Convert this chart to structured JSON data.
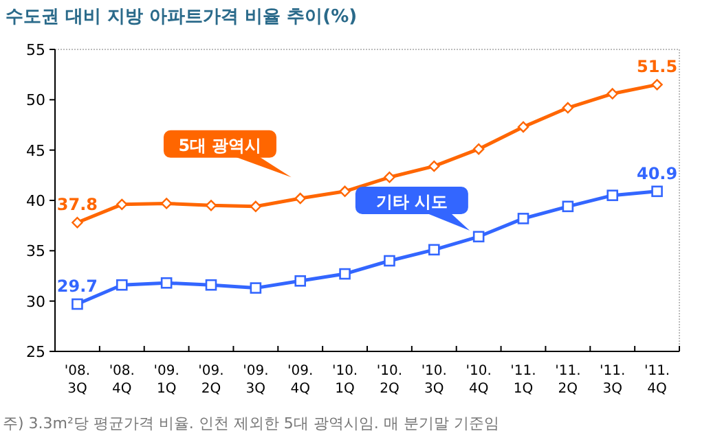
{
  "chart_data": {
    "type": "line",
    "title": "수도권 대비 지방 아파트가격 비율 추이(%)",
    "categories": [
      "'08.\n3Q",
      "'08.\n4Q",
      "'09.\n1Q",
      "'09.\n2Q",
      "'09.\n3Q",
      "'09.\n4Q",
      "'10.\n1Q",
      "'10.\n2Q",
      "'10.\n3Q",
      "'10.\n4Q",
      "'11.\n1Q",
      "'11.\n2Q",
      "'11.\n3Q",
      "'11.\n4Q"
    ],
    "series": [
      {
        "name": "5대 광역시",
        "color": "#ff6600",
        "marker": "diamond",
        "values": [
          37.8,
          39.6,
          39.7,
          39.5,
          39.4,
          40.2,
          40.9,
          42.3,
          43.4,
          45.1,
          47.3,
          49.2,
          50.6,
          51.5
        ],
        "value_labels": [
          "37.8",
          null,
          null,
          null,
          null,
          null,
          null,
          null,
          null,
          null,
          null,
          null,
          null,
          "51.5"
        ]
      },
      {
        "name": "기타 시도",
        "color": "#3366ff",
        "marker": "square",
        "values": [
          29.7,
          31.6,
          31.8,
          31.6,
          31.3,
          32.0,
          32.7,
          34.0,
          35.1,
          36.4,
          38.2,
          39.4,
          40.5,
          40.9
        ],
        "value_labels": [
          "29.7",
          null,
          null,
          null,
          null,
          null,
          null,
          null,
          null,
          null,
          null,
          null,
          null,
          "40.9"
        ]
      }
    ],
    "ylim": [
      25,
      55
    ],
    "yticks": [
      25,
      30,
      35,
      40,
      45,
      50,
      55
    ],
    "grid": false,
    "line_style": "solid",
    "annotations": [
      "주) 3.3m²당 평균가격 비율. 인천 제외한 5대 광역시임. 매 분기말 기준임"
    ]
  }
}
